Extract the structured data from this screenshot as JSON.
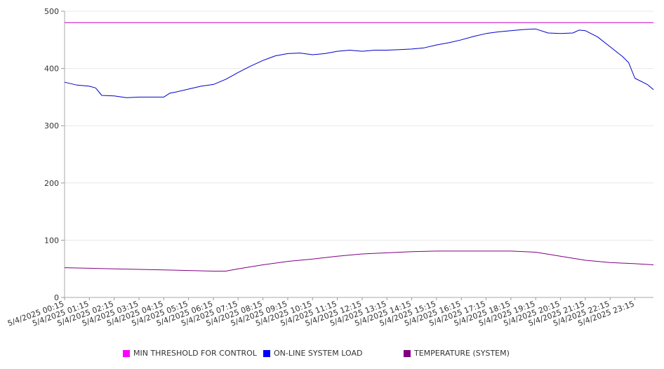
{
  "chart_data": {
    "type": "line",
    "ylim": [
      0,
      500
    ],
    "yticks": [
      0,
      100,
      200,
      300,
      400,
      500
    ],
    "grid": true,
    "legend_position": "bottom",
    "x_labels": [
      "5/4/2025 00:15",
      "5/4/2025 01:15",
      "5/4/2025 02:15",
      "5/4/2025 03:15",
      "5/4/2025 04:15",
      "5/4/2025 05:15",
      "5/4/2025 06:15",
      "5/4/2025 07:15",
      "5/4/2025 08:15",
      "5/4/2025 09:15",
      "5/4/2025 10:15",
      "5/4/2025 11:15",
      "5/4/2025 12:15",
      "5/4/2025 13:15",
      "5/4/2025 14:15",
      "5/4/2025 15:15",
      "5/4/2025 16:15",
      "5/4/2025 17:15",
      "5/4/2025 18:15",
      "5/4/2025 19:15",
      "5/4/2025 20:15",
      "5/4/2025 21:15",
      "5/4/2025 22:15",
      "5/4/2025 23:15"
    ],
    "x_range_hours": [
      0.25,
      24.0
    ],
    "series": [
      {
        "name": "MIN THRESHOLD FOR CONTROL",
        "color": "#cc00cc",
        "x_hours": [
          0.25,
          24.0
        ],
        "values": [
          480,
          480
        ]
      },
      {
        "name": "ON-LINE SYSTEM LOAD",
        "color": "#0000cc",
        "x_hours": [
          0.25,
          0.75,
          1.25,
          1.5,
          1.75,
          2.25,
          2.75,
          3.25,
          3.75,
          4.25,
          4.5,
          4.75,
          5.25,
          5.75,
          6.25,
          6.75,
          7.25,
          7.75,
          8.25,
          8.75,
          9.25,
          9.75,
          10.25,
          10.75,
          11.25,
          11.75,
          12.25,
          12.75,
          13.25,
          13.75,
          14.25,
          14.75,
          15.25,
          15.75,
          16.25,
          16.75,
          17.25,
          17.75,
          18.25,
          18.75,
          19.25,
          19.75,
          20.25,
          20.75,
          21.0,
          21.25,
          21.75,
          22.25,
          22.75,
          23.0,
          23.25,
          23.75,
          24.0
        ],
        "values": [
          376,
          371,
          369,
          366,
          353,
          352,
          349,
          350,
          350,
          350,
          357,
          359,
          364,
          369,
          372,
          381,
          393,
          404,
          414,
          422,
          426,
          427,
          424,
          426,
          430,
          432,
          430,
          432,
          432,
          433,
          434,
          436,
          441,
          445,
          450,
          456,
          461,
          464,
          466,
          468,
          469,
          462,
          461,
          462,
          467,
          466,
          455,
          438,
          421,
          410,
          383,
          372,
          363
        ]
      },
      {
        "name": "TEMPERATURE (SYSTEM)",
        "color": "#800080",
        "x_hours": [
          0.25,
          1.25,
          2.25,
          3.25,
          4.25,
          5.25,
          6.25,
          6.75,
          7.25,
          8.25,
          9.25,
          10.25,
          11.25,
          12.25,
          13.25,
          14.25,
          15.25,
          16.25,
          17.25,
          18.25,
          19.25,
          20.25,
          21.25,
          22.25,
          23.25,
          24.0
        ],
        "values": [
          52,
          51,
          50,
          49,
          48,
          47,
          46,
          46,
          50,
          57,
          63,
          67,
          72,
          76,
          78,
          80,
          81,
          81,
          81,
          81,
          79,
          72,
          65,
          61,
          59,
          57
        ]
      }
    ]
  }
}
